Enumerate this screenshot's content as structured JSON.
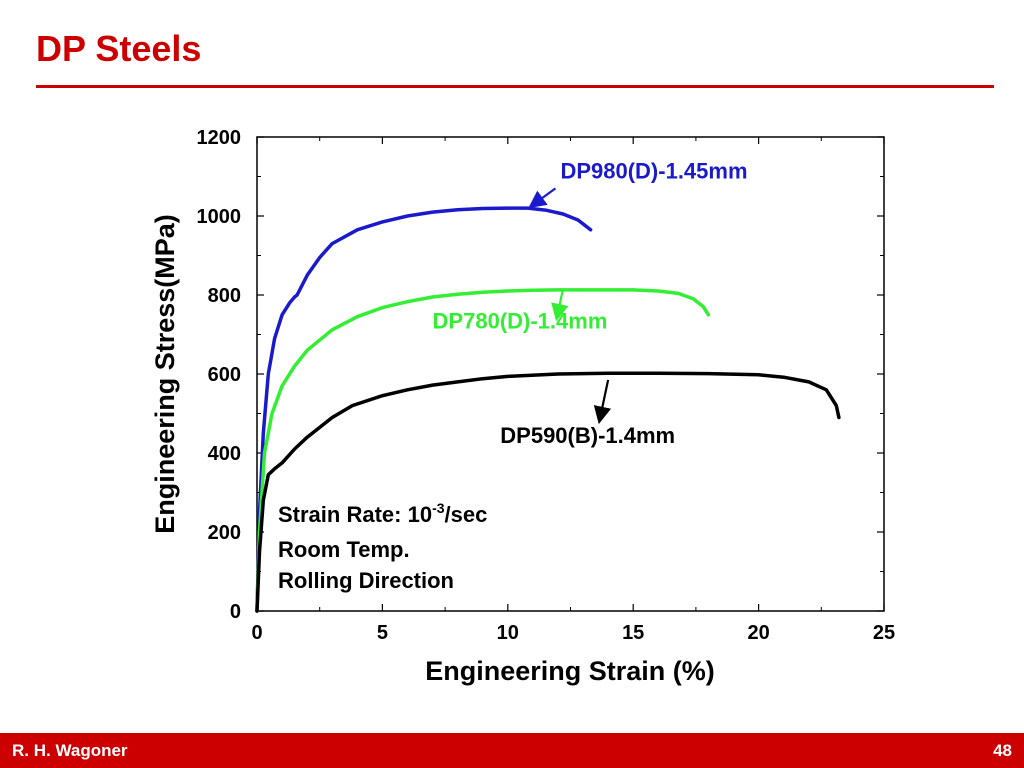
{
  "slide": {
    "title": "DP Steels",
    "author": "R. H. Wagoner",
    "page_number": "48",
    "accent_color": "#cc0000"
  },
  "chart_data": {
    "type": "line",
    "xlabel": "Engineering Strain (%)",
    "ylabel": "Engineering Stress(MPa)",
    "xlim": [
      0,
      25
    ],
    "ylim": [
      0,
      1200
    ],
    "xticks": [
      0,
      5,
      10,
      15,
      20,
      25
    ],
    "yticks": [
      0,
      200,
      400,
      600,
      800,
      1000,
      1200
    ],
    "grid": false,
    "annotation": {
      "strain_rate_prefix": "Strain Rate:  10",
      "strain_rate_exp": "-3",
      "strain_rate_suffix": "/sec",
      "line2": "Room Temp.",
      "line3": "Rolling Direction"
    },
    "series": [
      {
        "name": "DP980(D)-1.45mm",
        "color": "#1a1acc",
        "points": [
          [
            0,
            0
          ],
          [
            0.1,
            250
          ],
          [
            0.25,
            450
          ],
          [
            0.45,
            600
          ],
          [
            0.7,
            690
          ],
          [
            1.0,
            750
          ],
          [
            1.3,
            780
          ],
          [
            1.5,
            795
          ],
          [
            1.6,
            800
          ],
          [
            2,
            850
          ],
          [
            2.5,
            895
          ],
          [
            3,
            930
          ],
          [
            4,
            965
          ],
          [
            5,
            985
          ],
          [
            6,
            1000
          ],
          [
            7,
            1010
          ],
          [
            8,
            1016
          ],
          [
            9,
            1019
          ],
          [
            10,
            1020
          ],
          [
            10.8,
            1020
          ],
          [
            11.5,
            1015
          ],
          [
            12.2,
            1005
          ],
          [
            12.8,
            990
          ],
          [
            13.3,
            965
          ]
        ]
      },
      {
        "name": "DP780(D)-1.4mm",
        "color": "#33ee33",
        "points": [
          [
            0,
            0
          ],
          [
            0.1,
            200
          ],
          [
            0.3,
            400
          ],
          [
            0.6,
            500
          ],
          [
            1,
            570
          ],
          [
            1.5,
            620
          ],
          [
            2,
            660
          ],
          [
            3,
            712
          ],
          [
            4,
            745
          ],
          [
            5,
            768
          ],
          [
            6,
            783
          ],
          [
            7,
            795
          ],
          [
            8,
            802
          ],
          [
            9,
            807
          ],
          [
            10,
            810
          ],
          [
            11,
            812
          ],
          [
            12,
            813
          ],
          [
            13,
            813
          ],
          [
            14,
            813
          ],
          [
            15,
            813
          ],
          [
            16,
            810
          ],
          [
            16.8,
            804
          ],
          [
            17.4,
            790
          ],
          [
            17.8,
            770
          ],
          [
            18.0,
            750
          ]
        ]
      },
      {
        "name": "DP590(B)-1.4mm",
        "color": "#000000",
        "points": [
          [
            0,
            0
          ],
          [
            0.1,
            150
          ],
          [
            0.25,
            280
          ],
          [
            0.45,
            345
          ],
          [
            0.7,
            360
          ],
          [
            1,
            375
          ],
          [
            1.5,
            410
          ],
          [
            2,
            440
          ],
          [
            3,
            490
          ],
          [
            3.8,
            520
          ],
          [
            5,
            545
          ],
          [
            6,
            560
          ],
          [
            7,
            572
          ],
          [
            8,
            580
          ],
          [
            9,
            588
          ],
          [
            10,
            594
          ],
          [
            12,
            600
          ],
          [
            14,
            602
          ],
          [
            16,
            602
          ],
          [
            18,
            601
          ],
          [
            20,
            598
          ],
          [
            21,
            592
          ],
          [
            22,
            580
          ],
          [
            22.7,
            560
          ],
          [
            23.1,
            520
          ],
          [
            23.2,
            490
          ]
        ]
      }
    ],
    "labels": [
      {
        "series": 0,
        "text": "DP980(D)-1.45mm",
        "x": 12.1,
        "y": 1095,
        "arrow_from": [
          11.9,
          1070
        ],
        "arrow_to": [
          11.1,
          1033
        ]
      },
      {
        "series": 1,
        "text": "DP780(D)-1.4mm",
        "x": 7.0,
        "y": 715,
        "arrow_from": [
          12.2,
          815
        ],
        "arrow_to": [
          12.0,
          755
        ]
      },
      {
        "series": 2,
        "text": "DP590(B)-1.4mm",
        "x": 9.7,
        "y": 425,
        "arrow_from": [
          14.0,
          585
        ],
        "arrow_to": [
          13.7,
          495
        ]
      }
    ]
  }
}
